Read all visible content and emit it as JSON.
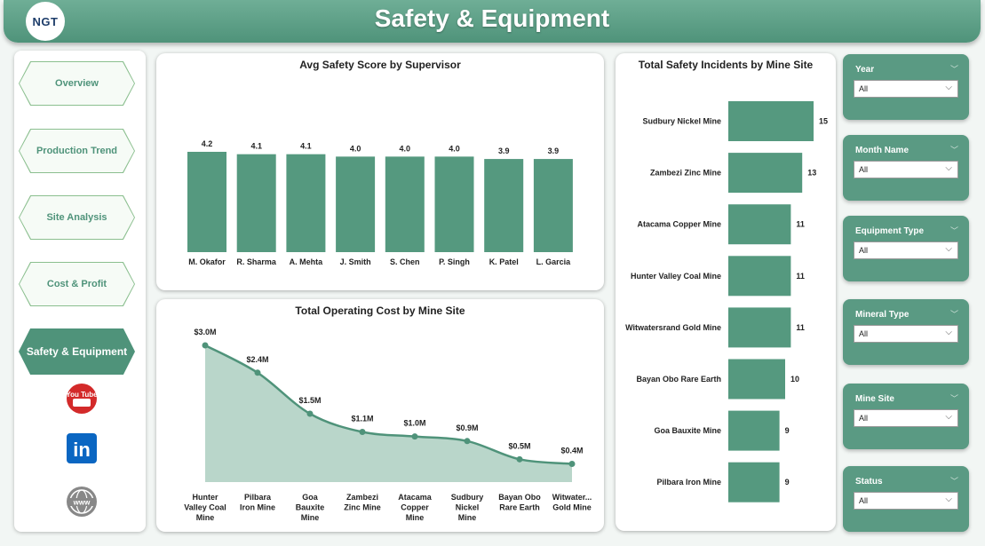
{
  "header": {
    "title": "Safety & Equipment",
    "logo_text": "NGT"
  },
  "nav": {
    "items": [
      {
        "label": "Overview",
        "active": false
      },
      {
        "label": "Production Trend",
        "active": false
      },
      {
        "label": "Site Analysis",
        "active": false
      },
      {
        "label": "Cost & Profit",
        "active": false
      },
      {
        "label": "Safety & Equipment",
        "active": true
      }
    ],
    "social": [
      "youtube-icon",
      "linkedin-icon",
      "website-icon"
    ],
    "youtube_text": "You Tube",
    "linkedin_text": "in",
    "website_text": "www"
  },
  "colors": {
    "accent": "#4f937a",
    "bar": "#55997f",
    "area": "#b9d6ca"
  },
  "chart_data": [
    {
      "type": "bar",
      "title": "Avg Safety Score by Supervisor",
      "categories": [
        "M. Okafor",
        "R. Sharma",
        "A. Mehta",
        "J. Smith",
        "S. Chen",
        "P. Singh",
        "K. Patel",
        "L. Garcia"
      ],
      "values": [
        4.2,
        4.1,
        4.1,
        4.0,
        4.0,
        4.0,
        3.9,
        3.9
      ],
      "data_labels": [
        "4.2",
        "4.1",
        "4.1",
        "4.0",
        "4.0",
        "4.0",
        "3.9",
        "3.9"
      ],
      "ylim": [
        0,
        4.2
      ]
    },
    {
      "type": "area",
      "title": "Total Operating Cost by Mine Site",
      "categories": [
        "Hunter Valley Coal Mine",
        "Pilbara Iron Mine",
        "Goa Bauxite Mine",
        "Zambezi Zinc Mine",
        "Atacama Copper Mine",
        "Sudbury Nickel Mine",
        "Bayan Obo Rare Earth",
        "Witwater... Gold Mine"
      ],
      "category_lines": [
        [
          "Hunter",
          "Valley Coal",
          "Mine"
        ],
        [
          "Pilbara",
          "Iron Mine"
        ],
        [
          "Goa",
          "Bauxite",
          "Mine"
        ],
        [
          "Zambezi",
          "Zinc Mine"
        ],
        [
          "Atacama",
          "Copper",
          "Mine"
        ],
        [
          "Sudbury",
          "Nickel",
          "Mine"
        ],
        [
          "Bayan Obo",
          "Rare Earth"
        ],
        [
          "Witwater...",
          "Gold Mine"
        ]
      ],
      "values": [
        3.0,
        2.4,
        1.5,
        1.1,
        1.0,
        0.9,
        0.5,
        0.4
      ],
      "data_labels": [
        "$3.0M",
        "$2.4M",
        "$1.5M",
        "$1.1M",
        "$1.0M",
        "$0.9M",
        "$0.5M",
        "$0.4M"
      ],
      "ylim": [
        0,
        3.0
      ]
    },
    {
      "type": "bar",
      "orientation": "horizontal",
      "title": "Total Safety Incidents by Mine Site",
      "categories": [
        "Sudbury Nickel Mine",
        "Zambezi Zinc Mine",
        "Atacama Copper Mine",
        "Hunter Valley Coal Mine",
        "Witwatersrand Gold Mine",
        "Bayan Obo Rare Earth",
        "Goa Bauxite Mine",
        "Pilbara Iron Mine"
      ],
      "values": [
        15,
        13,
        11,
        11,
        11,
        10,
        9,
        9
      ],
      "xlim": [
        0,
        15
      ]
    }
  ],
  "filters": [
    {
      "label": "Year",
      "value": "All"
    },
    {
      "label": "Month Name",
      "value": "All"
    },
    {
      "label": "Equipment Type",
      "value": "All"
    },
    {
      "label": "Mineral Type",
      "value": "All"
    },
    {
      "label": "Mine Site",
      "value": "All"
    },
    {
      "label": "Status",
      "value": "All"
    }
  ]
}
